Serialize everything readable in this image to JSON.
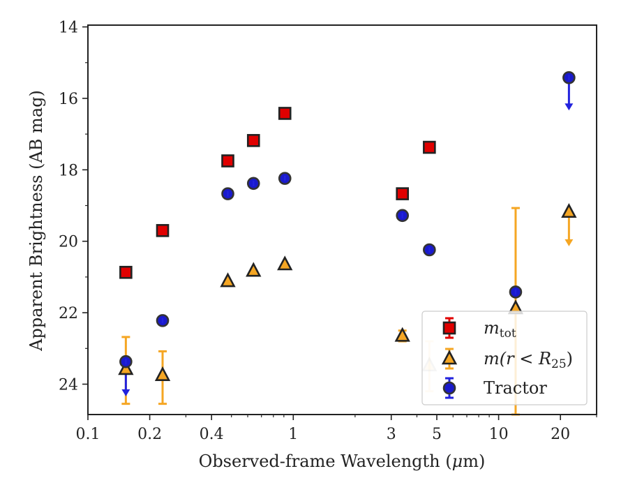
{
  "chart_data": {
    "type": "scatter",
    "title": "",
    "xlabel_parts": [
      "Observed-frame Wavelength (",
      "μ",
      "m)"
    ],
    "ylabel": "Apparent Brightness (AB mag)",
    "x_scale": "log",
    "y_inverted": true,
    "xlim": [
      0.1,
      30
    ],
    "ylim": [
      24.85,
      13.95
    ],
    "xticks": [
      {
        "value": 0.1,
        "label": "0.1"
      },
      {
        "value": 0.2,
        "label": "0.2"
      },
      {
        "value": 0.4,
        "label": "0.4"
      },
      {
        "value": 1,
        "label": "1"
      },
      {
        "value": 3,
        "label": "3"
      },
      {
        "value": 5,
        "label": "5"
      },
      {
        "value": 10,
        "label": "10"
      },
      {
        "value": 20,
        "label": "20"
      }
    ],
    "xminor": [
      0.3,
      0.5,
      0.6,
      0.7,
      0.8,
      0.9,
      2,
      4,
      6,
      7,
      8,
      9,
      30
    ],
    "yticks": [
      {
        "value": 14,
        "label": "14"
      },
      {
        "value": 16,
        "label": "16"
      },
      {
        "value": 18,
        "label": "18"
      },
      {
        "value": 20,
        "label": "20"
      },
      {
        "value": 22,
        "label": "22"
      },
      {
        "value": 24,
        "label": "24"
      }
    ],
    "yminor": [
      15,
      17,
      19,
      21,
      23
    ],
    "grid": false,
    "legend_position": "lower-right",
    "series": [
      {
        "name_parts": [
          "m",
          "tot"
        ],
        "marker": "square",
        "color": "#e00000",
        "edge_color": "#222222",
        "error_color": "#e00000",
        "points": [
          {
            "x": 0.153,
            "y": 20.87
          },
          {
            "x": 0.231,
            "y": 19.7
          },
          {
            "x": 0.48,
            "y": 17.75
          },
          {
            "x": 0.64,
            "y": 17.18
          },
          {
            "x": 0.91,
            "y": 16.42
          },
          {
            "x": 3.4,
            "y": 18.67
          },
          {
            "x": 4.6,
            "y": 17.37
          }
        ]
      },
      {
        "name_parts": [
          "m(r < R",
          "25",
          ")"
        ],
        "marker": "triangle",
        "color": "#f5a623",
        "edge_color": "#222222",
        "error_color": "#f5a623",
        "points": [
          {
            "x": 0.153,
            "y": 23.58,
            "yerr_low": 22.68,
            "yerr_high": 24.55
          },
          {
            "x": 0.231,
            "y": 23.75,
            "yerr_low": 23.08,
            "yerr_high": 24.55
          },
          {
            "x": 0.48,
            "y": 21.12
          },
          {
            "x": 0.64,
            "y": 20.83
          },
          {
            "x": 0.91,
            "y": 20.65
          },
          {
            "x": 3.4,
            "y": 22.65,
            "yerr_low": 22.5,
            "yerr_high": 22.8
          },
          {
            "x": 4.6,
            "y": 23.48,
            "yerr_low": 22.8,
            "yerr_high": 24.2,
            "faded": true
          },
          {
            "x": 12.1,
            "y": 21.88,
            "yerr_low": 19.07,
            "yerr_high": 24.85
          },
          {
            "x": 22.0,
            "y": 19.18,
            "upper_limit": true,
            "arrow_to": 20.1
          }
        ]
      },
      {
        "name": "Tractor",
        "marker": "circle",
        "color": "#1a1acc",
        "edge_color": "#333333",
        "error_color": "#2222dd",
        "points": [
          {
            "x": 0.153,
            "y": 23.37,
            "upper_limit": true,
            "arrow_to": 24.3
          },
          {
            "x": 0.231,
            "y": 22.22
          },
          {
            "x": 0.48,
            "y": 18.67
          },
          {
            "x": 0.64,
            "y": 18.38
          },
          {
            "x": 0.91,
            "y": 18.24
          },
          {
            "x": 3.4,
            "y": 19.28
          },
          {
            "x": 4.6,
            "y": 20.24
          },
          {
            "x": 12.1,
            "y": 21.42
          },
          {
            "x": 22.0,
            "y": 15.42,
            "upper_limit": true,
            "arrow_to": 16.3
          }
        ]
      }
    ]
  }
}
